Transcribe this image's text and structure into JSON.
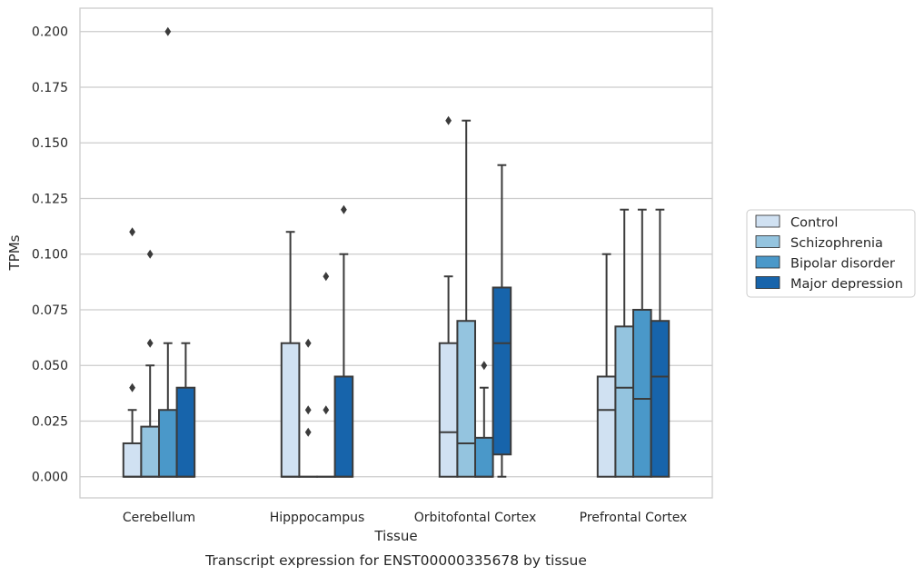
{
  "chart_data": {
    "type": "box",
    "title": "",
    "caption": "Transcript expression for ENST00000335678 by tissue",
    "xlabel": "Tissue",
    "ylabel": "TPMs",
    "ylim": [
      -0.0095,
      0.2105
    ],
    "y_ticks": [
      0.0,
      0.025,
      0.05,
      0.075,
      0.1,
      0.125,
      0.15,
      0.175,
      0.2
    ],
    "y_tick_labels": [
      "0.000",
      "0.025",
      "0.050",
      "0.075",
      "0.100",
      "0.125",
      "0.150",
      "0.175",
      "0.200"
    ],
    "grid": "horizontal",
    "legend_position": "right",
    "categories": [
      "Cerebellum",
      "Hipppocampus",
      "Orbitofontal Cortex",
      "Prefrontal Cortex"
    ],
    "series": [
      {
        "name": "Control",
        "color": "#d0e1f2",
        "boxes": [
          {
            "whislo": 0.0,
            "q1": 0.0,
            "med": 0.0,
            "q3": 0.015,
            "whishi": 0.03,
            "fliers": [
              0.04,
              0.11
            ]
          },
          {
            "whislo": 0.0,
            "q1": 0.0,
            "med": 0.0,
            "q3": 0.06,
            "whishi": 0.11,
            "fliers": []
          },
          {
            "whislo": 0.0,
            "q1": 0.0,
            "med": 0.02,
            "q3": 0.06,
            "whishi": 0.09,
            "fliers": [
              0.16
            ]
          },
          {
            "whislo": 0.0,
            "q1": 0.0,
            "med": 0.03,
            "q3": 0.045,
            "whishi": 0.1,
            "fliers": []
          }
        ]
      },
      {
        "name": "Schizophrenia",
        "color": "#94c4df",
        "boxes": [
          {
            "whislo": 0.0,
            "q1": 0.0,
            "med": 0.0,
            "q3": 0.0225,
            "whishi": 0.05,
            "fliers": [
              0.06,
              0.1
            ]
          },
          {
            "whislo": 0.0,
            "q1": 0.0,
            "med": 0.0,
            "q3": 0.0,
            "whishi": 0.0,
            "fliers": [
              0.02,
              0.03,
              0.06
            ]
          },
          {
            "whislo": 0.0,
            "q1": 0.0,
            "med": 0.015,
            "q3": 0.07,
            "whishi": 0.16,
            "fliers": []
          },
          {
            "whislo": 0.0,
            "q1": 0.0,
            "med": 0.04,
            "q3": 0.0675,
            "whishi": 0.12,
            "fliers": []
          }
        ]
      },
      {
        "name": "Bipolar disorder",
        "color": "#4a98c9",
        "boxes": [
          {
            "whislo": 0.0,
            "q1": 0.0,
            "med": 0.0,
            "q3": 0.03,
            "whishi": 0.06,
            "fliers": [
              0.2
            ]
          },
          {
            "whislo": 0.0,
            "q1": 0.0,
            "med": 0.0,
            "q3": 0.0,
            "whishi": 0.0,
            "fliers": [
              0.03,
              0.09
            ]
          },
          {
            "whislo": 0.0,
            "q1": 0.0,
            "med": 0.0,
            "q3": 0.0175,
            "whishi": 0.04,
            "fliers": [
              0.05
            ]
          },
          {
            "whislo": 0.0,
            "q1": 0.0,
            "med": 0.035,
            "q3": 0.075,
            "whishi": 0.12,
            "fliers": []
          }
        ]
      },
      {
        "name": "Major depression",
        "color": "#1764ab",
        "boxes": [
          {
            "whislo": 0.0,
            "q1": 0.0,
            "med": 0.0,
            "q3": 0.04,
            "whishi": 0.06,
            "fliers": []
          },
          {
            "whislo": 0.0,
            "q1": 0.0,
            "med": 0.0,
            "q3": 0.045,
            "whishi": 0.1,
            "fliers": [
              0.12
            ]
          },
          {
            "whislo": 0.0,
            "q1": 0.01,
            "med": 0.06,
            "q3": 0.085,
            "whishi": 0.14,
            "fliers": []
          },
          {
            "whislo": 0.0,
            "q1": 0.0,
            "med": 0.045,
            "q3": 0.07,
            "whishi": 0.12,
            "fliers": []
          }
        ]
      }
    ]
  }
}
